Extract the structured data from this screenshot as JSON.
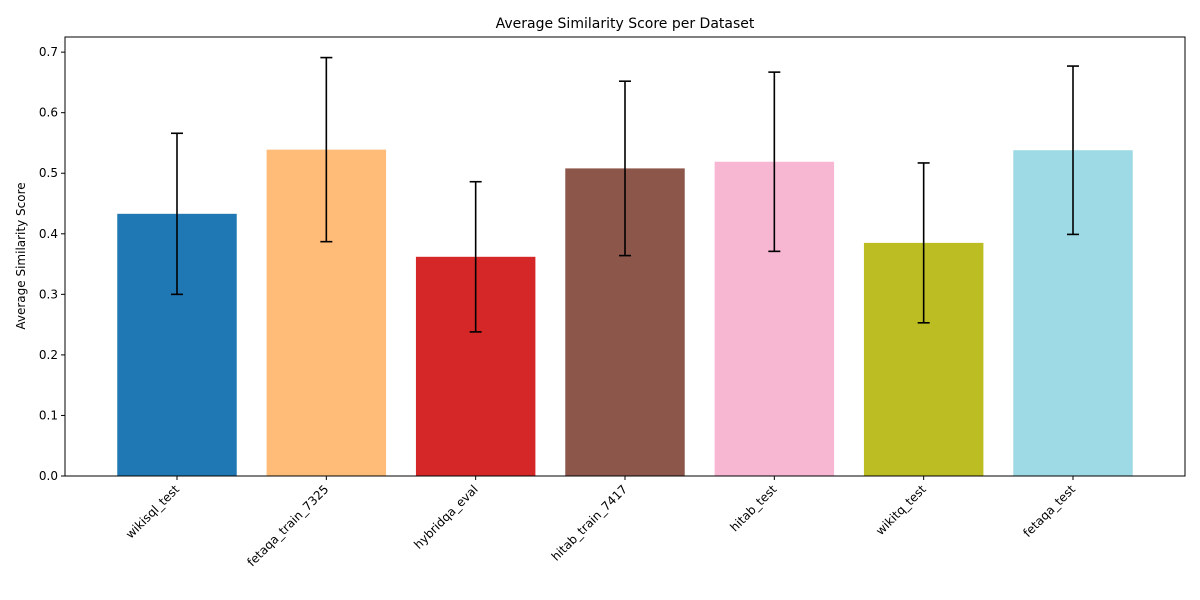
{
  "chart_data": {
    "type": "bar",
    "title": "Average Similarity Score per Dataset",
    "xlabel": "",
    "ylabel": "Average Similarity Score",
    "ylim": [
      0,
      0.725
    ],
    "yticks": [
      "0.0",
      "0.1",
      "0.2",
      "0.3",
      "0.4",
      "0.5",
      "0.6",
      "0.7"
    ],
    "categories": [
      "wikisql_test",
      "fetaqa_train_7325",
      "hybridqa_eval",
      "hitab_train_7417",
      "hitab_test",
      "wikitq_test",
      "fetaqa_test"
    ],
    "values": [
      0.433,
      0.539,
      0.362,
      0.508,
      0.519,
      0.385,
      0.538
    ],
    "errors": [
      0.133,
      0.152,
      0.124,
      0.144,
      0.148,
      0.132,
      0.139
    ],
    "colors": [
      "#1f77b4",
      "#ffbb78",
      "#d62728",
      "#8c564b",
      "#f7b6d2",
      "#bcbd22",
      "#9edae5"
    ],
    "grid": false,
    "legend": "none"
  }
}
